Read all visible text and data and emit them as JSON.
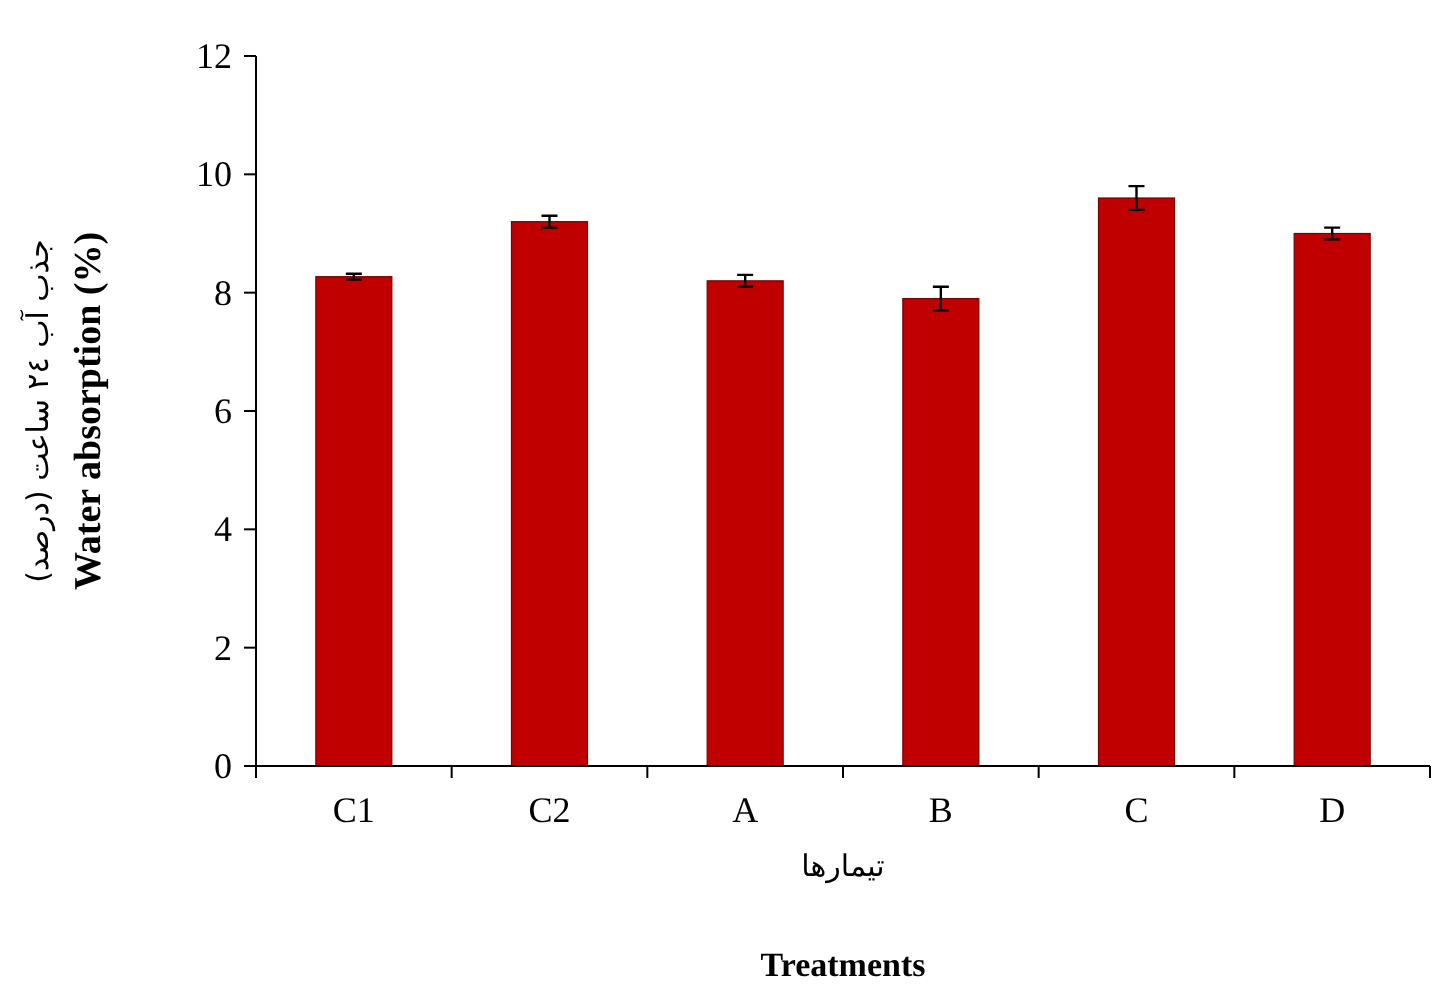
{
  "chart_data": {
    "type": "bar",
    "xlabel": "تیمارها",
    "ylabel": "Water absorption (%)",
    "annotations": [
      "جذب آب ٢٤ ساعت (درصد)",
      "Treatments"
    ],
    "categories": [
      "C1",
      "C2",
      "A",
      "B",
      "C",
      "D"
    ],
    "values": [
      8.27,
      9.2,
      8.2,
      7.9,
      9.6,
      9.0
    ],
    "errors": [
      0.05,
      0.1,
      0.1,
      0.2,
      0.2,
      0.1
    ],
    "color": "#c00000",
    "ylim": [
      0,
      12
    ],
    "yticks": [
      0,
      2,
      4,
      6,
      8,
      10,
      12
    ]
  }
}
